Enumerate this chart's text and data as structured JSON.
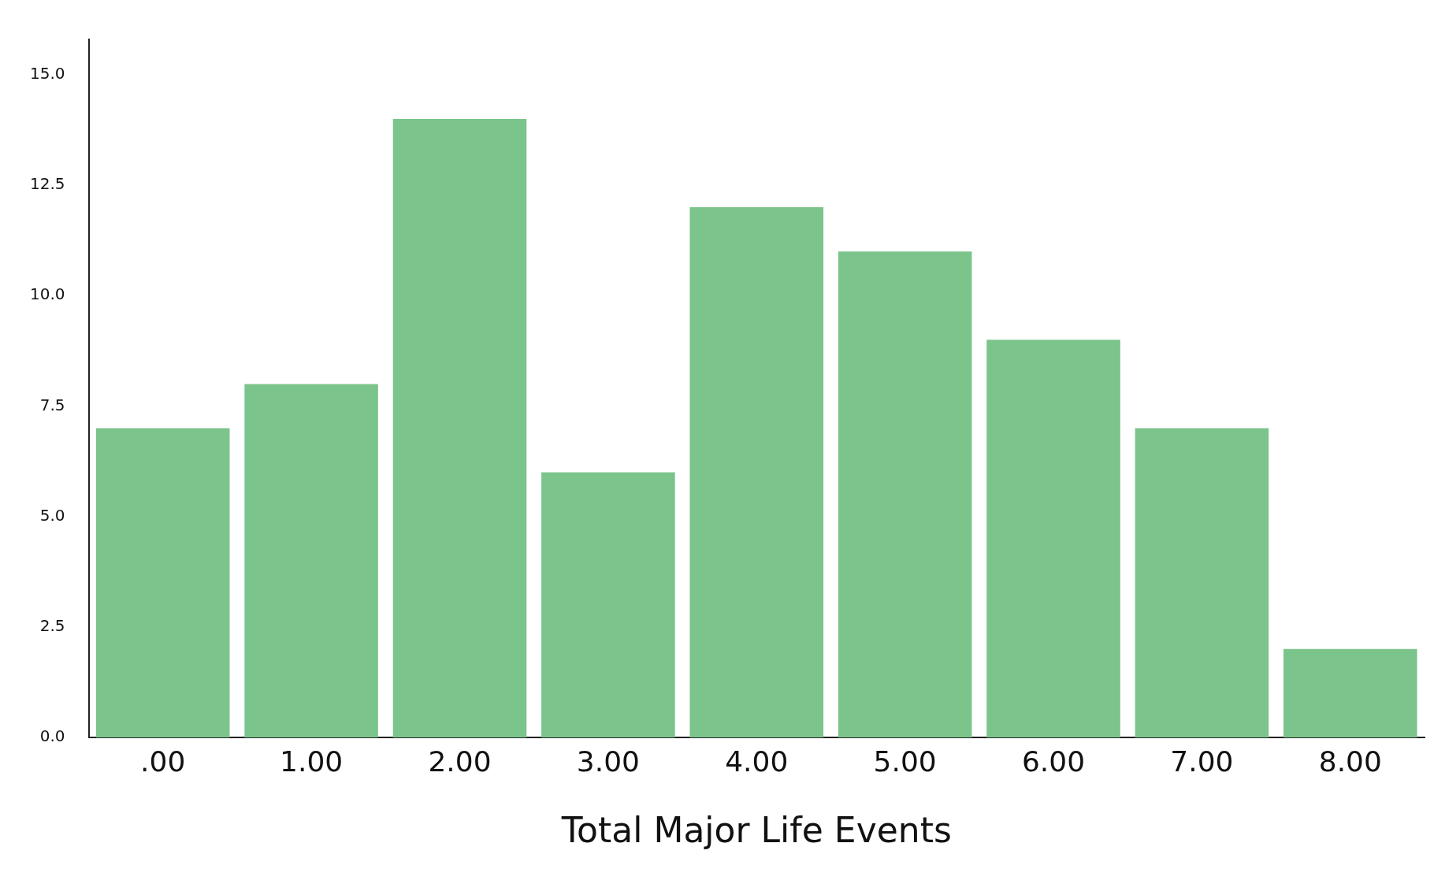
{
  "chart_data": {
    "type": "bar",
    "xlabel": "Total Major Life Events",
    "categories": [
      ".00",
      "1.00",
      "2.00",
      "3.00",
      "4.00",
      "5.00",
      "6.00",
      "7.00",
      "8.00"
    ],
    "values": [
      7,
      8,
      14,
      6,
      12,
      11,
      9,
      7,
      2
    ],
    "color": "#7bc48b",
    "ylim": [
      0,
      15.8
    ],
    "yticks": [
      {
        "value": 0,
        "label": "0.0"
      },
      {
        "value": 2.5,
        "label": "2.5"
      },
      {
        "value": 5,
        "label": "5.0"
      },
      {
        "value": 7.5,
        "label": "7.5"
      },
      {
        "value": 10,
        "label": "10.0"
      },
      {
        "value": 12.5,
        "label": "12.5"
      },
      {
        "value": 15,
        "label": "15.0"
      }
    ],
    "grid": false,
    "legend": false
  }
}
